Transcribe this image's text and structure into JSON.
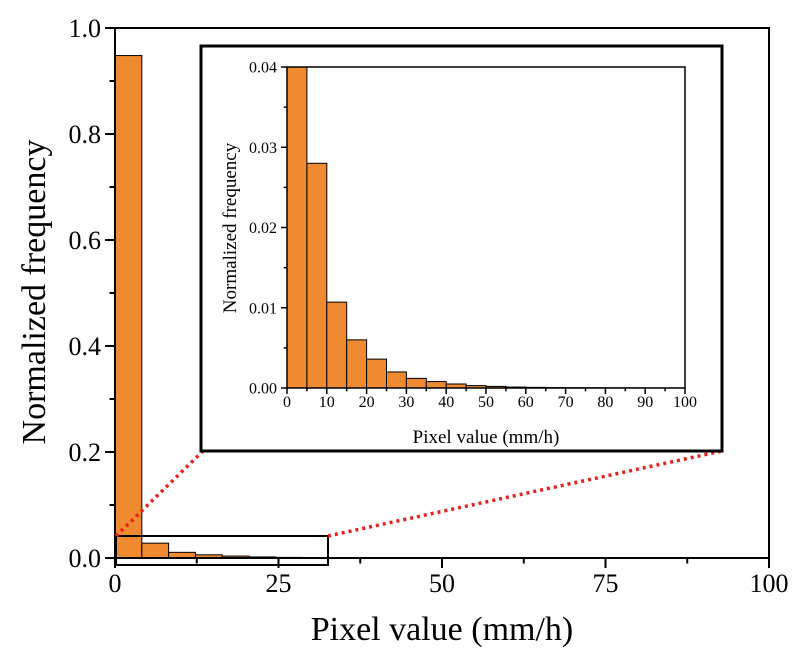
{
  "chart_data": [
    {
      "type": "bar",
      "title": "",
      "xlabel": "Pixel value (mm/h)",
      "ylabel": "Normalized frequency",
      "xlim": [
        0,
        100
      ],
      "ylim": [
        0,
        1.0
      ],
      "x_ticks": [
        "0",
        "25",
        "50",
        "75",
        "100"
      ],
      "y_ticks": [
        "0.0",
        "0.2",
        "0.4",
        "0.6",
        "0.8",
        "1.0"
      ],
      "bin_width": 4.1,
      "x": [
        0,
        4.1,
        8.2,
        12.3,
        16.4,
        20.5,
        24.6,
        28.7
      ],
      "values": [
        0.948,
        0.028,
        0.0107,
        0.006,
        0.0036,
        0.002,
        0.0012,
        0.0008
      ],
      "grid": false,
      "bar_color": "#f08a30",
      "zoom_box_color": "#000000",
      "connector_color": "#e8201a"
    },
    {
      "type": "bar",
      "title": "",
      "xlabel": "Pixel value (mm/h)",
      "ylabel": "Normalized frequency",
      "xlim": [
        0,
        100
      ],
      "ylim": [
        0,
        0.04
      ],
      "x_ticks": [
        "0",
        "10",
        "20",
        "30",
        "40",
        "50",
        "60",
        "70",
        "80",
        "90",
        "100"
      ],
      "y_ticks": [
        "0.00",
        "0.01",
        "0.02",
        "0.03",
        "0.04"
      ],
      "bin_width": 5,
      "x": [
        0,
        5,
        10,
        15,
        20,
        25,
        30,
        35,
        40,
        45,
        50,
        55,
        60,
        65,
        70,
        75,
        80,
        85,
        90,
        95
      ],
      "values": [
        0.04,
        0.028,
        0.0107,
        0.006,
        0.0036,
        0.002,
        0.0012,
        0.0008,
        0.0005,
        0.0003,
        0.0002,
        0.00012,
        8e-05,
        5e-05,
        4e-05,
        3e-05,
        2e-05,
        2e-05,
        1e-05,
        1e-05
      ],
      "grid": false,
      "bar_color": "#f08a30"
    }
  ]
}
